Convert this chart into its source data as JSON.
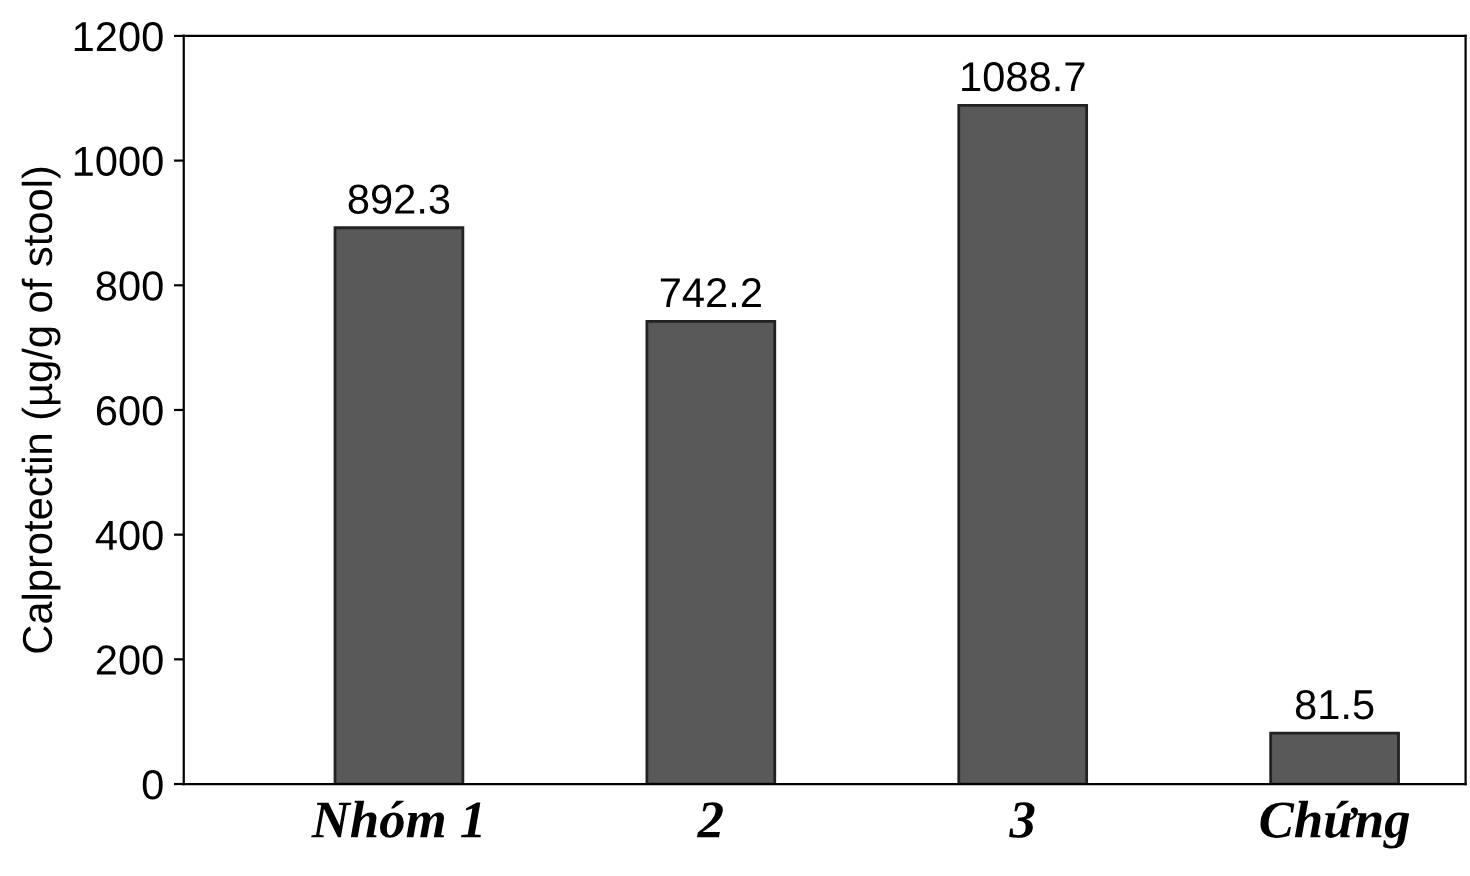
{
  "chart_data": {
    "type": "bar",
    "ylabel": "Calprotectin (µg/g of stool)",
    "categories": [
      "Nhóm 1",
      "2",
      "3",
      "Chứng"
    ],
    "values": [
      892.3,
      742.2,
      1088.7,
      81.5
    ],
    "color": "#595959",
    "ylim": [
      0,
      1200
    ],
    "yticks": [
      0,
      200,
      400,
      600,
      800,
      1000,
      1200
    ],
    "data_labels": true,
    "grid": false,
    "legend": false
  }
}
